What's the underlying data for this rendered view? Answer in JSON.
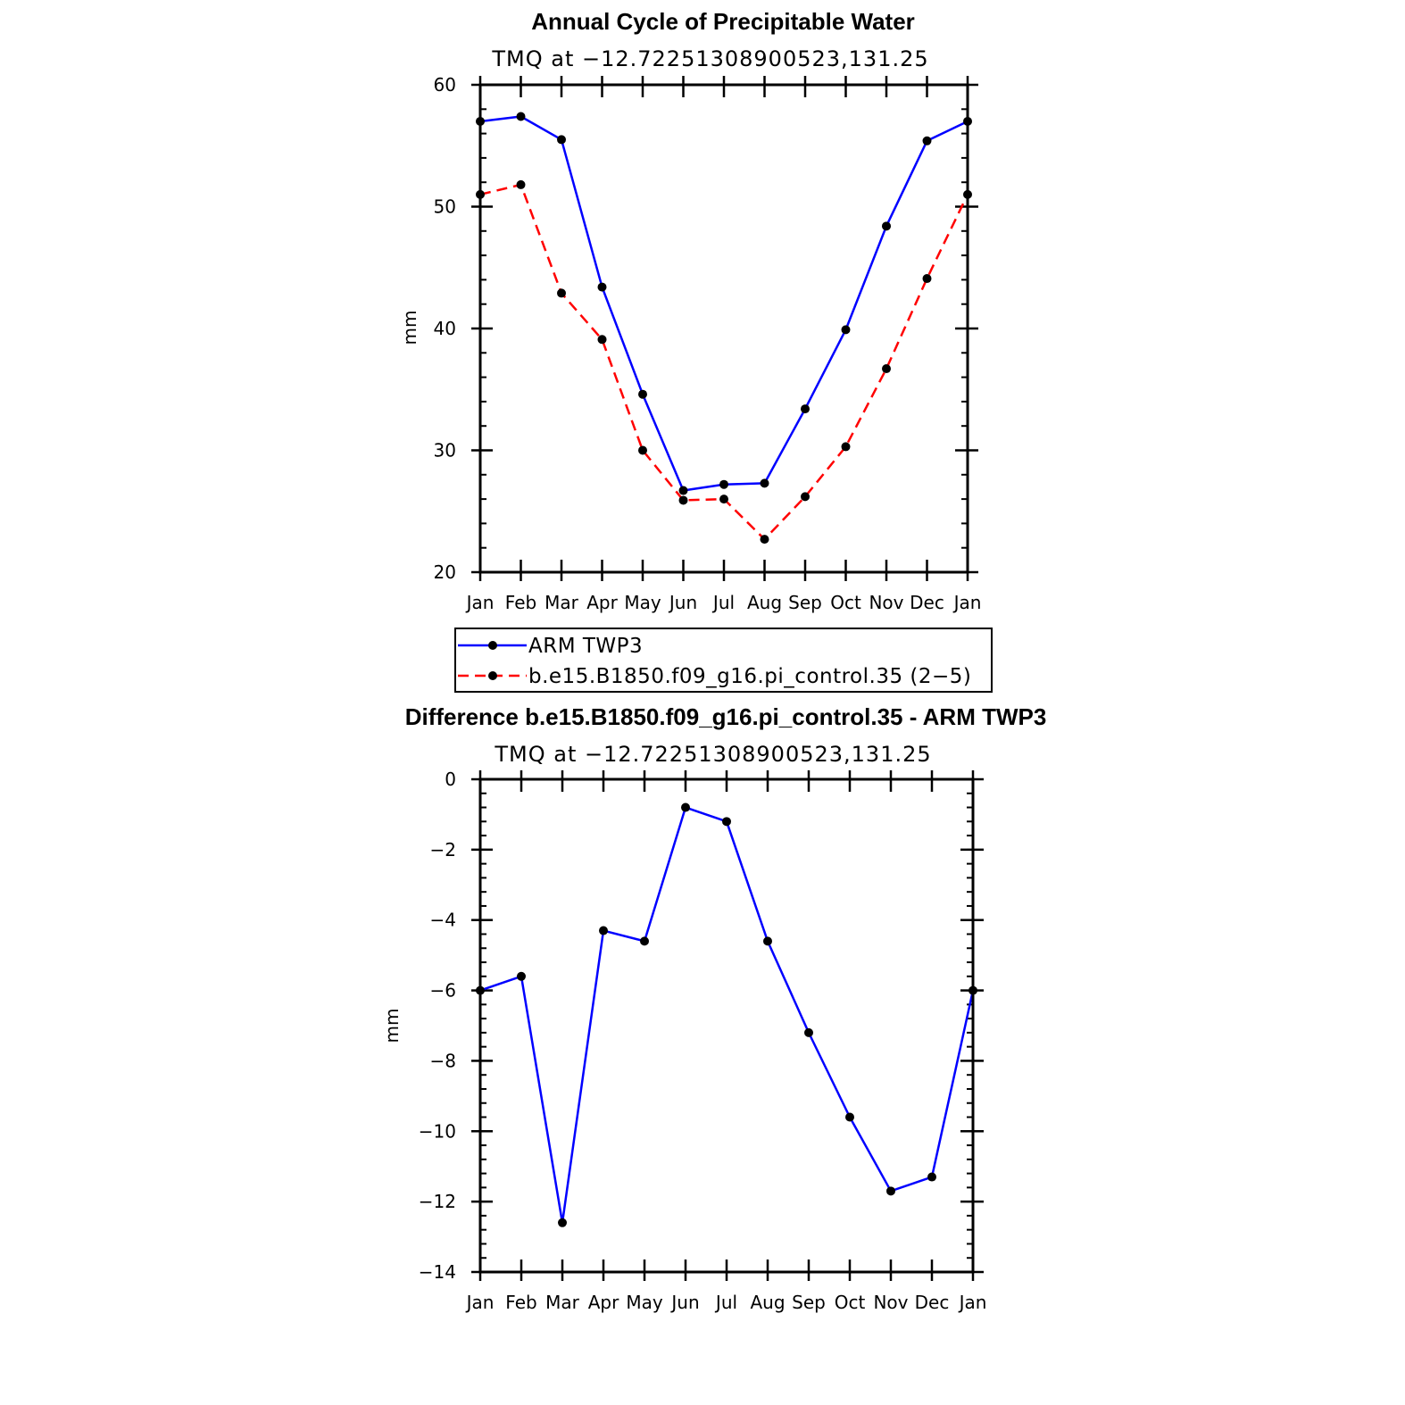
{
  "chart_data": [
    {
      "type": "line",
      "title": "Annual Cycle of Precipitable Water",
      "subtitle": "TMQ at −12.72251308900523,131.25",
      "ylabel": "mm",
      "xlabel": "",
      "categories": [
        "Jan",
        "Feb",
        "Mar",
        "Apr",
        "May",
        "Jun",
        "Jul",
        "Aug",
        "Sep",
        "Oct",
        "Nov",
        "Dec",
        "Jan"
      ],
      "ylim": [
        20,
        60
      ],
      "yticks": [
        20,
        30,
        40,
        50,
        60
      ],
      "ytick_labels": [
        "20",
        "30",
        "40",
        "50",
        "60"
      ],
      "series": [
        {
          "name": "ARM TWP3",
          "color": "#0000ff",
          "dash": "solid",
          "values": [
            57.0,
            57.4,
            55.5,
            43.4,
            34.6,
            26.7,
            27.2,
            27.3,
            33.4,
            39.9,
            48.4,
            55.4,
            57.0
          ]
        },
        {
          "name": "b.e15.B1850.f09_g16.pi_control.35 (2−5)",
          "color": "#ff0000",
          "dash": "dashed",
          "values": [
            51.0,
            51.8,
            42.9,
            39.1,
            30.0,
            25.9,
            26.0,
            22.7,
            26.2,
            30.3,
            36.7,
            44.1,
            51.0
          ]
        }
      ],
      "legend": {
        "placement": "below"
      }
    },
    {
      "type": "line",
      "title": "Difference b.e15.B1850.f09_g16.pi_control.35 - ARM TWP3",
      "subtitle": "TMQ at −12.72251308900523,131.25",
      "ylabel": "mm",
      "xlabel": "",
      "categories": [
        "Jan",
        "Feb",
        "Mar",
        "Apr",
        "May",
        "Jun",
        "Jul",
        "Aug",
        "Sep",
        "Oct",
        "Nov",
        "Dec",
        "Jan"
      ],
      "ylim": [
        -14,
        0
      ],
      "yticks": [
        -14,
        -12,
        -10,
        -8,
        -6,
        -4,
        -2,
        0
      ],
      "ytick_labels": [
        "−14",
        "−12",
        "−10",
        "−8",
        "−6",
        "−4",
        "−2",
        "0"
      ],
      "series": [
        {
          "name": "Difference",
          "color": "#0000ff",
          "dash": "solid",
          "values": [
            -6.0,
            -5.6,
            -12.6,
            -4.3,
            -4.6,
            -0.8,
            -1.2,
            -4.6,
            -7.2,
            -9.6,
            -11.7,
            -11.3,
            -6.0
          ]
        }
      ]
    }
  ]
}
